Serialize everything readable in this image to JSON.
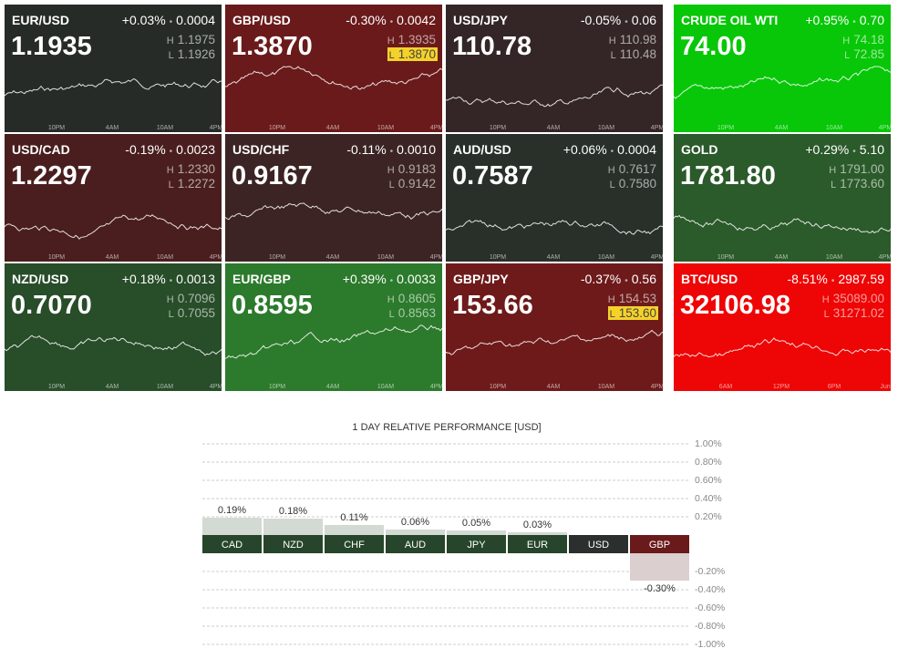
{
  "tiles": [
    {
      "name": "EUR/USD",
      "change": "+0.03%",
      "diff": "0.0004",
      "price": "1.1935",
      "high": "1.1975",
      "low": "1.1926",
      "color": "#262b28",
      "times": [
        "10PM",
        "4AM",
        "10AM",
        "4PM"
      ]
    },
    {
      "name": "GBP/USD",
      "change": "-0.30%",
      "diff": "0.0042",
      "price": "1.3870",
      "high": "1.3935",
      "low": "1.3870",
      "low_highlight": true,
      "color": "#6a1a1a",
      "times": [
        "10PM",
        "4AM",
        "10AM",
        "4PM"
      ]
    },
    {
      "name": "USD/JPY",
      "change": "-0.05%",
      "diff": "0.06",
      "price": "110.78",
      "high": "110.98",
      "low": "110.48",
      "color": "#342626",
      "times": [
        "10PM",
        "4AM",
        "10AM",
        "4PM"
      ]
    },
    {
      "name": "CRUDE OIL WTI",
      "change": "+0.95%",
      "diff": "0.70",
      "price": "74.00",
      "high": "74.18",
      "low": "72.85",
      "color": "#08c708",
      "times": [
        "10PM",
        "4AM",
        "10AM",
        "4PM"
      ]
    },
    {
      "name": "USD/CAD",
      "change": "-0.19%",
      "diff": "0.0023",
      "price": "1.2297",
      "high": "1.2330",
      "low": "1.2272",
      "color": "#4a1e1e",
      "times": [
        "10PM",
        "4AM",
        "10AM",
        "4PM"
      ]
    },
    {
      "name": "USD/CHF",
      "change": "-0.11%",
      "diff": "0.0010",
      "price": "0.9167",
      "high": "0.9183",
      "low": "0.9142",
      "color": "#3c2424",
      "times": [
        "10PM",
        "4AM",
        "10AM",
        "4PM"
      ]
    },
    {
      "name": "AUD/USD",
      "change": "+0.06%",
      "diff": "0.0004",
      "price": "0.7587",
      "high": "0.7617",
      "low": "0.7580",
      "color": "#283029",
      "times": [
        "10PM",
        "4AM",
        "10AM",
        "4PM"
      ]
    },
    {
      "name": "GOLD",
      "change": "+0.29%",
      "diff": "5.10",
      "price": "1781.80",
      "high": "1791.00",
      "low": "1773.60",
      "color": "#2b5a2b",
      "times": [
        "10PM",
        "4AM",
        "10AM",
        "4PM"
      ]
    },
    {
      "name": "NZD/USD",
      "change": "+0.18%",
      "diff": "0.0013",
      "price": "0.7070",
      "high": "0.7096",
      "low": "0.7055",
      "color": "#284d29",
      "times": [
        "10PM",
        "4AM",
        "10AM",
        "4PM"
      ]
    },
    {
      "name": "EUR/GBP",
      "change": "+0.39%",
      "diff": "0.0033",
      "price": "0.8595",
      "high": "0.8605",
      "low": "0.8563",
      "color": "#2c7a2c",
      "times": [
        "10PM",
        "4AM",
        "10AM",
        "4PM"
      ]
    },
    {
      "name": "GBP/JPY",
      "change": "-0.37%",
      "diff": "0.56",
      "price": "153.66",
      "high": "154.53",
      "low": "153.60",
      "low_highlight": true,
      "color": "#6e1a1a",
      "times": [
        "10PM",
        "4AM",
        "10AM",
        "4PM"
      ]
    },
    {
      "name": "BTC/USD",
      "change": "-8.51%",
      "diff": "2987.59",
      "price": "32106.98",
      "high": "35089.00",
      "low": "31271.02",
      "color": "#ee0505",
      "times": [
        "6AM",
        "12PM",
        "6PM",
        "Jun"
      ]
    }
  ],
  "labels": {
    "high": "H",
    "low": "L",
    "separator": "•"
  },
  "chart_data": {
    "type": "bar",
    "title": "1 DAY RELATIVE PERFORMANCE  [USD]",
    "categories": [
      "CAD",
      "NZD",
      "CHF",
      "AUD",
      "JPY",
      "EUR",
      "USD",
      "GBP"
    ],
    "values": [
      0.19,
      0.18,
      0.11,
      0.06,
      0.05,
      0.03,
      0,
      -0.3
    ],
    "value_labels": [
      "0.19%",
      "0.18%",
      "0.11%",
      "0.06%",
      "0.05%",
      "0.03%",
      null,
      "-0.30%"
    ],
    "ylim": [
      -1,
      1
    ],
    "yticks": [
      {
        "value": 1,
        "label": "1.00%"
      },
      {
        "value": 0.8,
        "label": "0.80%"
      },
      {
        "value": 0.6,
        "label": "0.60%"
      },
      {
        "value": 0.4,
        "label": "0.40%"
      },
      {
        "value": 0.2,
        "label": "0.20%"
      },
      {
        "value": -0.2,
        "label": "-0.20%"
      },
      {
        "value": -0.4,
        "label": "-0.40%"
      },
      {
        "value": -0.6,
        "label": "-0.60%"
      },
      {
        "value": -0.8,
        "label": "-0.80%"
      },
      {
        "value": -1,
        "label": "-1.00%"
      }
    ],
    "grid": true
  }
}
